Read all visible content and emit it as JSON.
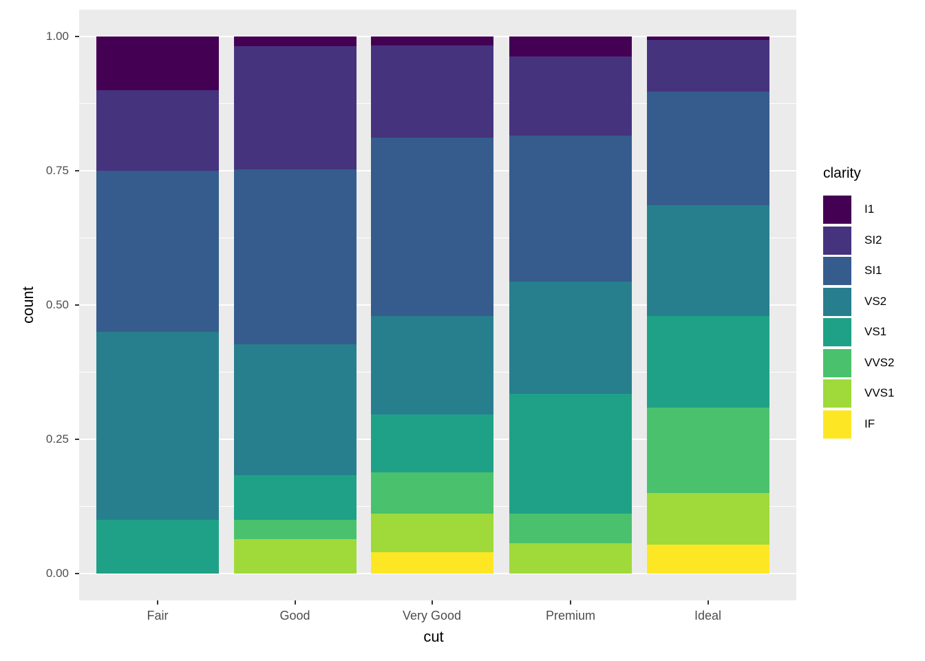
{
  "figure": {
    "y_axis": {
      "title": "count",
      "tick_labels": [
        "0.00",
        "0.25",
        "0.50",
        "0.75",
        "1.00"
      ],
      "tick_values": [
        0,
        0.25,
        0.5,
        0.75,
        1
      ]
    },
    "x_axis": {
      "title": "cut"
    },
    "legend": {
      "title": "clarity"
    },
    "colors": {
      "panel_bg": "#EBEBEB",
      "grid": "#FFFFFF",
      "tick_label": "#4D4D4D",
      "axis_title": "#000000",
      "tick_mark": "#333333"
    }
  },
  "chart_data": {
    "type": "bar",
    "subtype": "stacked-fill-proportion",
    "title": "",
    "xlabel": "cut",
    "ylabel": "count",
    "categories": [
      "Fair",
      "Good",
      "Very Good",
      "Premium",
      "Ideal"
    ],
    "ylim": [
      0,
      1
    ],
    "yticks": [
      0,
      0.25,
      0.5,
      0.75,
      1
    ],
    "grid": true,
    "legend_title": "clarity",
    "legend_position": "right",
    "stack_note": "segments stacked bottom-to-top in reverse legend order (IF at bottom, I1 on top); values are proportions of each cut",
    "series": [
      {
        "name": "I1",
        "color": "#440154",
        "values": [
          0.1,
          0.018,
          0.017,
          0.037,
          0.006
        ]
      },
      {
        "name": "SI2",
        "color": "#46337E",
        "values": [
          0.15,
          0.23,
          0.172,
          0.147,
          0.096
        ]
      },
      {
        "name": "SI1",
        "color": "#365C8D",
        "values": [
          0.3,
          0.325,
          0.331,
          0.272,
          0.212
        ]
      },
      {
        "name": "VS2",
        "color": "#277F8E",
        "values": [
          0.35,
          0.244,
          0.184,
          0.209,
          0.206
        ]
      },
      {
        "name": "VS1",
        "color": "#1FA187",
        "values": [
          0.1,
          0.083,
          0.108,
          0.224,
          0.171
        ]
      },
      {
        "name": "VVS2",
        "color": "#4AC16D",
        "values": [
          0.0,
          0.036,
          0.077,
          0.054,
          0.159
        ]
      },
      {
        "name": "VVS1",
        "color": "#9FDA3A",
        "values": [
          0.0,
          0.064,
          0.071,
          0.057,
          0.096
        ]
      },
      {
        "name": "IF",
        "color": "#FDE725",
        "values": [
          0.0,
          0.0,
          0.04,
          0.0,
          0.054
        ]
      }
    ]
  }
}
